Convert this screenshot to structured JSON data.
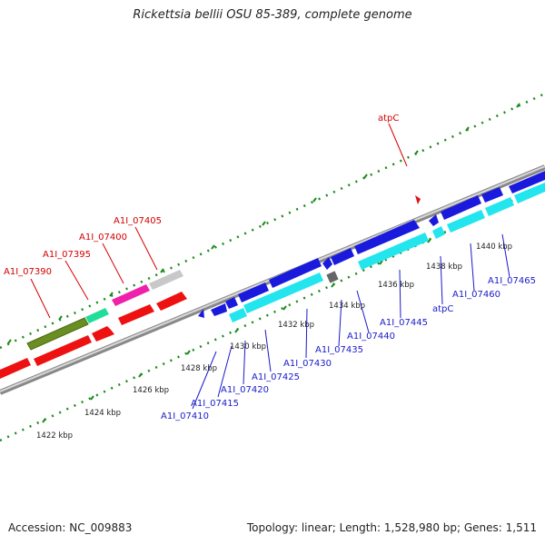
{
  "title": "Rickettsia bellii OSU 85-389, complete genome",
  "footer": {
    "accession": "Accession: NC_009883",
    "summary": "Topology: linear; Length: 1,528,980 bp; Genes: 1,511"
  },
  "colors": {
    "forward_label": "#d40000",
    "reverse_label": "#1a1acc",
    "axis": "#a0a0a0",
    "tick": "#1a8a1a"
  },
  "scale_labels": [
    "1422 kbp",
    "1424 kbp",
    "1426 kbp",
    "1428 kbp",
    "1430 kbp",
    "1432 kbp",
    "1434 kbp",
    "1436 kbp",
    "1438 kbp",
    "1440 kbp"
  ],
  "forward_labels": [
    "A1I_07390",
    "A1I_07395",
    "A1I_07400",
    "A1I_07405",
    "atpC"
  ],
  "reverse_labels": [
    "A1I_07410",
    "A1I_07415",
    "A1I_07420",
    "A1I_07425",
    "A1I_07430",
    "A1I_07435",
    "A1I_07440",
    "A1I_07445",
    "atpC",
    "A1I_07460",
    "A1I_07465"
  ]
}
